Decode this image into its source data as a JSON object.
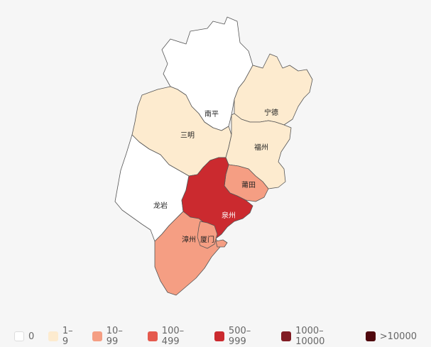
{
  "map": {
    "regions": [
      {
        "id": "nanping",
        "name": "南平",
        "bucket": 0
      },
      {
        "id": "ningde",
        "name": "宁德",
        "bucket": 1
      },
      {
        "id": "sanming",
        "name": "三明",
        "bucket": 1
      },
      {
        "id": "fuzhou",
        "name": "福州",
        "bucket": 1
      },
      {
        "id": "longyan",
        "name": "龙岩",
        "bucket": 0
      },
      {
        "id": "putian",
        "name": "莆田",
        "bucket": 2
      },
      {
        "id": "quanzhou",
        "name": "泉州",
        "bucket": 4
      },
      {
        "id": "zhangzhou",
        "name": "漳州",
        "bucket": 2
      },
      {
        "id": "xiamen",
        "name": "厦门",
        "bucket": 2
      }
    ]
  },
  "legend": {
    "items": [
      {
        "label": "0",
        "color": "#ffffff"
      },
      {
        "label": "1–9",
        "color": "#fdebcf"
      },
      {
        "label": "10–99",
        "color": "#f59e83"
      },
      {
        "label": "100–499",
        "color": "#e55a4e"
      },
      {
        "label": "500–999",
        "color": "#cb2a2f"
      },
      {
        "label": "1000–10000",
        "color": "#811c24"
      },
      {
        "label": ">10000",
        "color": "#4f070d"
      }
    ]
  }
}
